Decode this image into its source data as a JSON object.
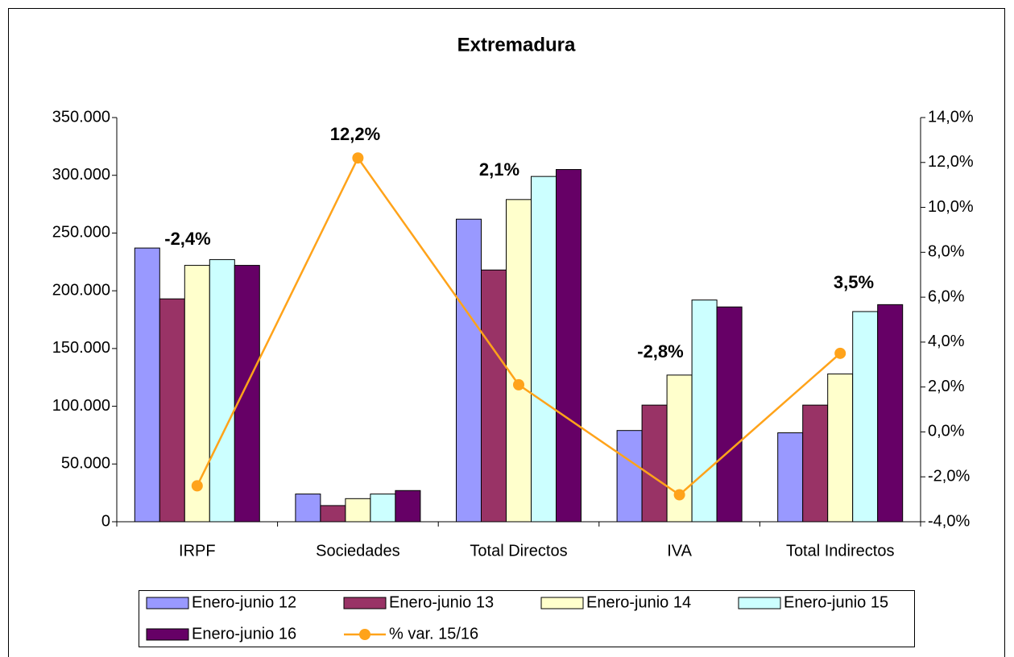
{
  "chart_data": {
    "type": "bar",
    "title": "Extremadura",
    "categories": [
      "IRPF",
      "Sociedades",
      "Total Directos",
      "IVA",
      "Total Indirectos"
    ],
    "series": [
      {
        "name": "Enero-junio 12",
        "color": "#9999ff",
        "values": [
          237000,
          24000,
          262000,
          79000,
          77000
        ]
      },
      {
        "name": "Enero-junio 13",
        "color": "#993366",
        "values": [
          193000,
          14000,
          218000,
          101000,
          101000
        ]
      },
      {
        "name": "Enero-junio 14",
        "color": "#ffffcc",
        "values": [
          222000,
          20000,
          279000,
          127000,
          128000
        ]
      },
      {
        "name": "Enero-junio 15",
        "color": "#ccffff",
        "values": [
          227000,
          24000,
          299000,
          192000,
          182000
        ]
      },
      {
        "name": "Enero-junio 16",
        "color": "#660066",
        "values": [
          222000,
          27000,
          305000,
          186000,
          188000
        ]
      },
      {
        "name": "% var. 15/16",
        "color": "#ffa31a",
        "type": "line",
        "axis": "y2",
        "values": [
          -2.4,
          12.2,
          2.1,
          -2.8,
          3.5
        ],
        "value_labels": [
          "-2,4%",
          "12,2%",
          "2,1%",
          "-2,8%",
          "3,5%"
        ]
      }
    ],
    "ylim": [
      0,
      350000
    ],
    "yticks": [
      0,
      {
        "value": 50000,
        "label": "50.000"
      },
      {
        "value": 100000,
        "label": "100.000"
      },
      {
        "value": 150000,
        "label": "150.000"
      },
      {
        "value": 200000,
        "label": "200.000"
      },
      {
        "value": 250000,
        "label": "250.000"
      },
      {
        "value": 300000,
        "label": "300.000"
      },
      {
        "value": 350000,
        "label": "350.000"
      }
    ],
    "y2lim": [
      -4,
      14
    ],
    "y2ticks": [
      {
        "value": -4,
        "label": "-4,0%"
      },
      {
        "value": -2,
        "label": "-2,0%"
      },
      {
        "value": 0,
        "label": "0,0%"
      },
      {
        "value": 2,
        "label": "2,0%"
      },
      {
        "value": 4,
        "label": "4,0%"
      },
      {
        "value": 6,
        "label": "6,0%"
      },
      {
        "value": 8,
        "label": "8,0%"
      },
      {
        "value": 10,
        "label": "10,0%"
      },
      {
        "value": 12,
        "label": "12,0%"
      },
      {
        "value": 14,
        "label": "14,0%"
      }
    ],
    "legend": "bottom",
    "grid": false
  }
}
